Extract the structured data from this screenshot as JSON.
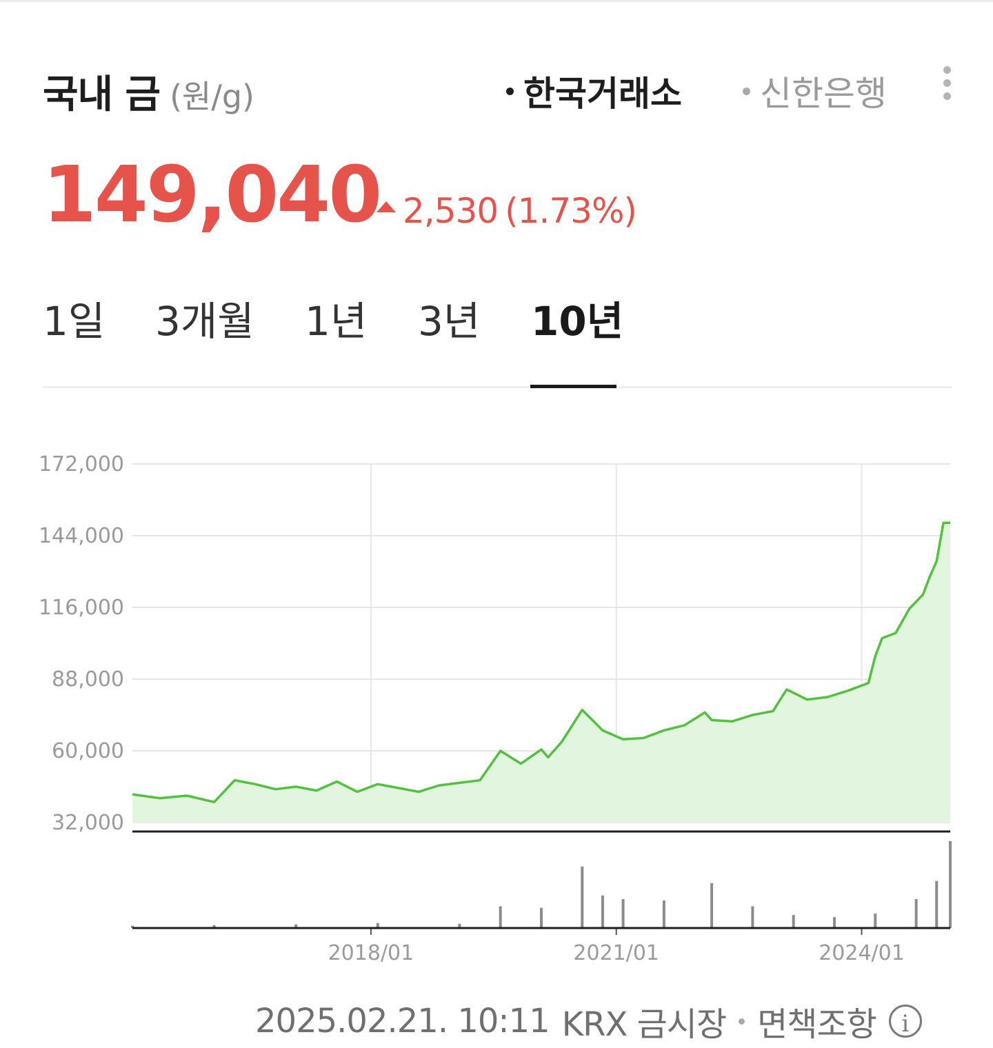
{
  "header": {
    "title": "국내 금",
    "unit": "(원/g)",
    "sources": [
      {
        "label": "한국거래소",
        "active": true
      },
      {
        "label": "신한은행",
        "active": false
      }
    ],
    "more_icon": "vertical-ellipsis-icon"
  },
  "quote": {
    "price": "149,040",
    "direction_icon": "up-triangle-icon",
    "change": "2,530",
    "change_pct": "(1.73%)",
    "color_up": "#e5534b"
  },
  "tabs": [
    {
      "label": "1일",
      "active": false
    },
    {
      "label": "3개월",
      "active": false
    },
    {
      "label": "1년",
      "active": false
    },
    {
      "label": "3년",
      "active": false
    },
    {
      "label": "10년",
      "active": true
    }
  ],
  "chart_data": {
    "type": "area",
    "period": "10년",
    "colors": {
      "line": "#52c13d",
      "fill": "#e2f5de",
      "volume": "#8c8c8c",
      "grid": "#e6e6e6",
      "tick": "#9a9a9a"
    },
    "ylim": [
      32000,
      172000
    ],
    "yticks": [
      "172,000",
      "144,000",
      "116,000",
      "88,000",
      "60,000",
      "32,000"
    ],
    "xlim": [
      "2015-02",
      "2025-02"
    ],
    "xticks": [
      "2018/01",
      "2021/01",
      "2024/01"
    ],
    "grid": true,
    "series": [
      {
        "x": [
          "2015-02",
          "2015-06",
          "2015-10",
          "2016-02",
          "2016-05",
          "2016-08",
          "2016-11",
          "2017-02",
          "2017-05",
          "2017-08",
          "2017-11",
          "2018-02",
          "2018-05",
          "2018-08",
          "2018-11",
          "2019-02",
          "2019-05",
          "2019-08",
          "2019-11",
          "2020-02",
          "2020-03",
          "2020-05",
          "2020-08",
          "2020-11",
          "2021-02",
          "2021-05",
          "2021-08",
          "2021-11",
          "2022-02",
          "2022-03",
          "2022-06",
          "2022-09",
          "2022-12",
          "2023-02",
          "2023-05",
          "2023-08",
          "2023-11",
          "2024-02",
          "2024-03",
          "2024-04",
          "2024-06",
          "2024-08",
          "2024-10",
          "2024-11",
          "2024-12",
          "2025-01",
          "2025-02"
        ],
        "values": [
          43000,
          41500,
          42500,
          40000,
          48500,
          47000,
          45000,
          46000,
          44500,
          48000,
          44000,
          47000,
          45500,
          44000,
          46500,
          47500,
          48500,
          60000,
          55000,
          60500,
          57500,
          63500,
          76000,
          68000,
          64500,
          65000,
          68000,
          70000,
          75000,
          72000,
          71500,
          74000,
          75500,
          84000,
          80000,
          81000,
          83500,
          86500,
          97000,
          104000,
          106000,
          115500,
          121000,
          128000,
          134000,
          149000,
          149040
        ]
      }
    ],
    "volume": {
      "x": [
        "2015-02",
        "2016-02",
        "2017-02",
        "2018-02",
        "2019-02",
        "2019-08",
        "2020-02",
        "2020-08",
        "2020-11",
        "2021-02",
        "2021-08",
        "2022-03",
        "2022-09",
        "2023-03",
        "2023-09",
        "2024-03",
        "2024-09",
        "2024-12",
        "2025-02"
      ],
      "values": [
        3,
        4,
        5,
        7,
        6,
        30,
        28,
        85,
        45,
        40,
        38,
        62,
        30,
        18,
        15,
        20,
        40,
        65,
        120
      ]
    }
  },
  "footer": {
    "timestamp": "2025.02.21. 10:11",
    "source": "KRX 금시장",
    "disclaimer": "면책조항",
    "info_icon": "info-circle-icon"
  }
}
